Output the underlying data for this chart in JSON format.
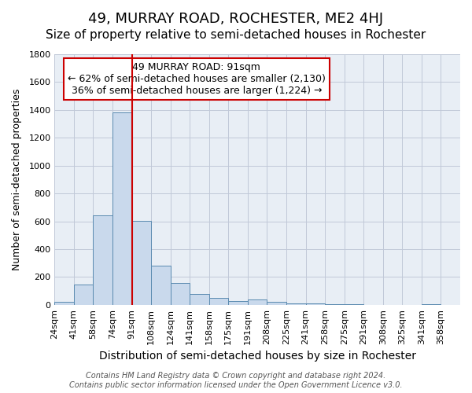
{
  "title": "49, MURRAY ROAD, ROCHESTER, ME2 4HJ",
  "subtitle": "Size of property relative to semi-detached houses in Rochester",
  "xlabel": "Distribution of semi-detached houses by size in Rochester",
  "ylabel": "Number of semi-detached properties",
  "footer_line1": "Contains HM Land Registry data © Crown copyright and database right 2024.",
  "footer_line2": "Contains public sector information licensed under the Open Government Licence v3.0.",
  "annotation_line1": "49 MURRAY ROAD: 91sqm",
  "annotation_line2": "← 62% of semi-detached houses are smaller (2,130)",
  "annotation_line3": "36% of semi-detached houses are larger (1,224) →",
  "bin_labels": [
    "24sqm",
    "41sqm",
    "58sqm",
    "74sqm",
    "91sqm",
    "108sqm",
    "124sqm",
    "141sqm",
    "158sqm",
    "175sqm",
    "191sqm",
    "208sqm",
    "225sqm",
    "241sqm",
    "258sqm",
    "275sqm",
    "291sqm",
    "308sqm",
    "325sqm",
    "341sqm",
    "358sqm"
  ],
  "bin_values": [
    20,
    145,
    645,
    1385,
    605,
    280,
    155,
    80,
    50,
    25,
    40,
    20,
    10,
    10,
    5,
    5,
    0,
    0,
    0,
    5,
    0
  ],
  "bar_color": "#c9d9ec",
  "bar_edge_color": "#5a8ab0",
  "vline_x": 4,
  "vline_color": "#cc0000",
  "annotation_box_edge_color": "#cc0000",
  "ylim": [
    0,
    1800
  ],
  "yticks": [
    0,
    200,
    400,
    600,
    800,
    1000,
    1200,
    1400,
    1600,
    1800
  ],
  "grid_color": "#c0c8d8",
  "background_color": "#e8eef5",
  "title_fontsize": 13,
  "subtitle_fontsize": 11,
  "xlabel_fontsize": 10,
  "ylabel_fontsize": 9,
  "tick_fontsize": 8,
  "annotation_fontsize": 9,
  "footer_fontsize": 7
}
